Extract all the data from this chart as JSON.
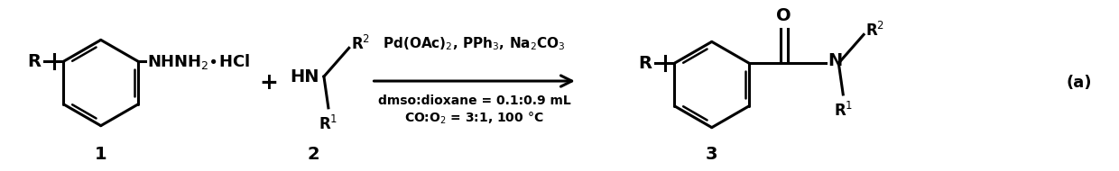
{
  "bg_color": "#ffffff",
  "fig_width": 12.4,
  "fig_height": 1.9,
  "dpi": 100,
  "reagents_line1": "Pd(OAc)$_2$, PPh$_3$, Na$_2$CO$_3$",
  "reagents_line2": "dmso:dioxane = 0.1:0.9 mL",
  "reagents_line3": "CO:O$_2$ = 3:1, 100 °C",
  "label1": "1",
  "label2": "2",
  "label3": "3",
  "label_a": "(a)",
  "font_size_main": 13,
  "font_size_reagent_top": 11,
  "font_size_reagent_bot": 10,
  "font_size_label": 14,
  "font_size_a": 13
}
